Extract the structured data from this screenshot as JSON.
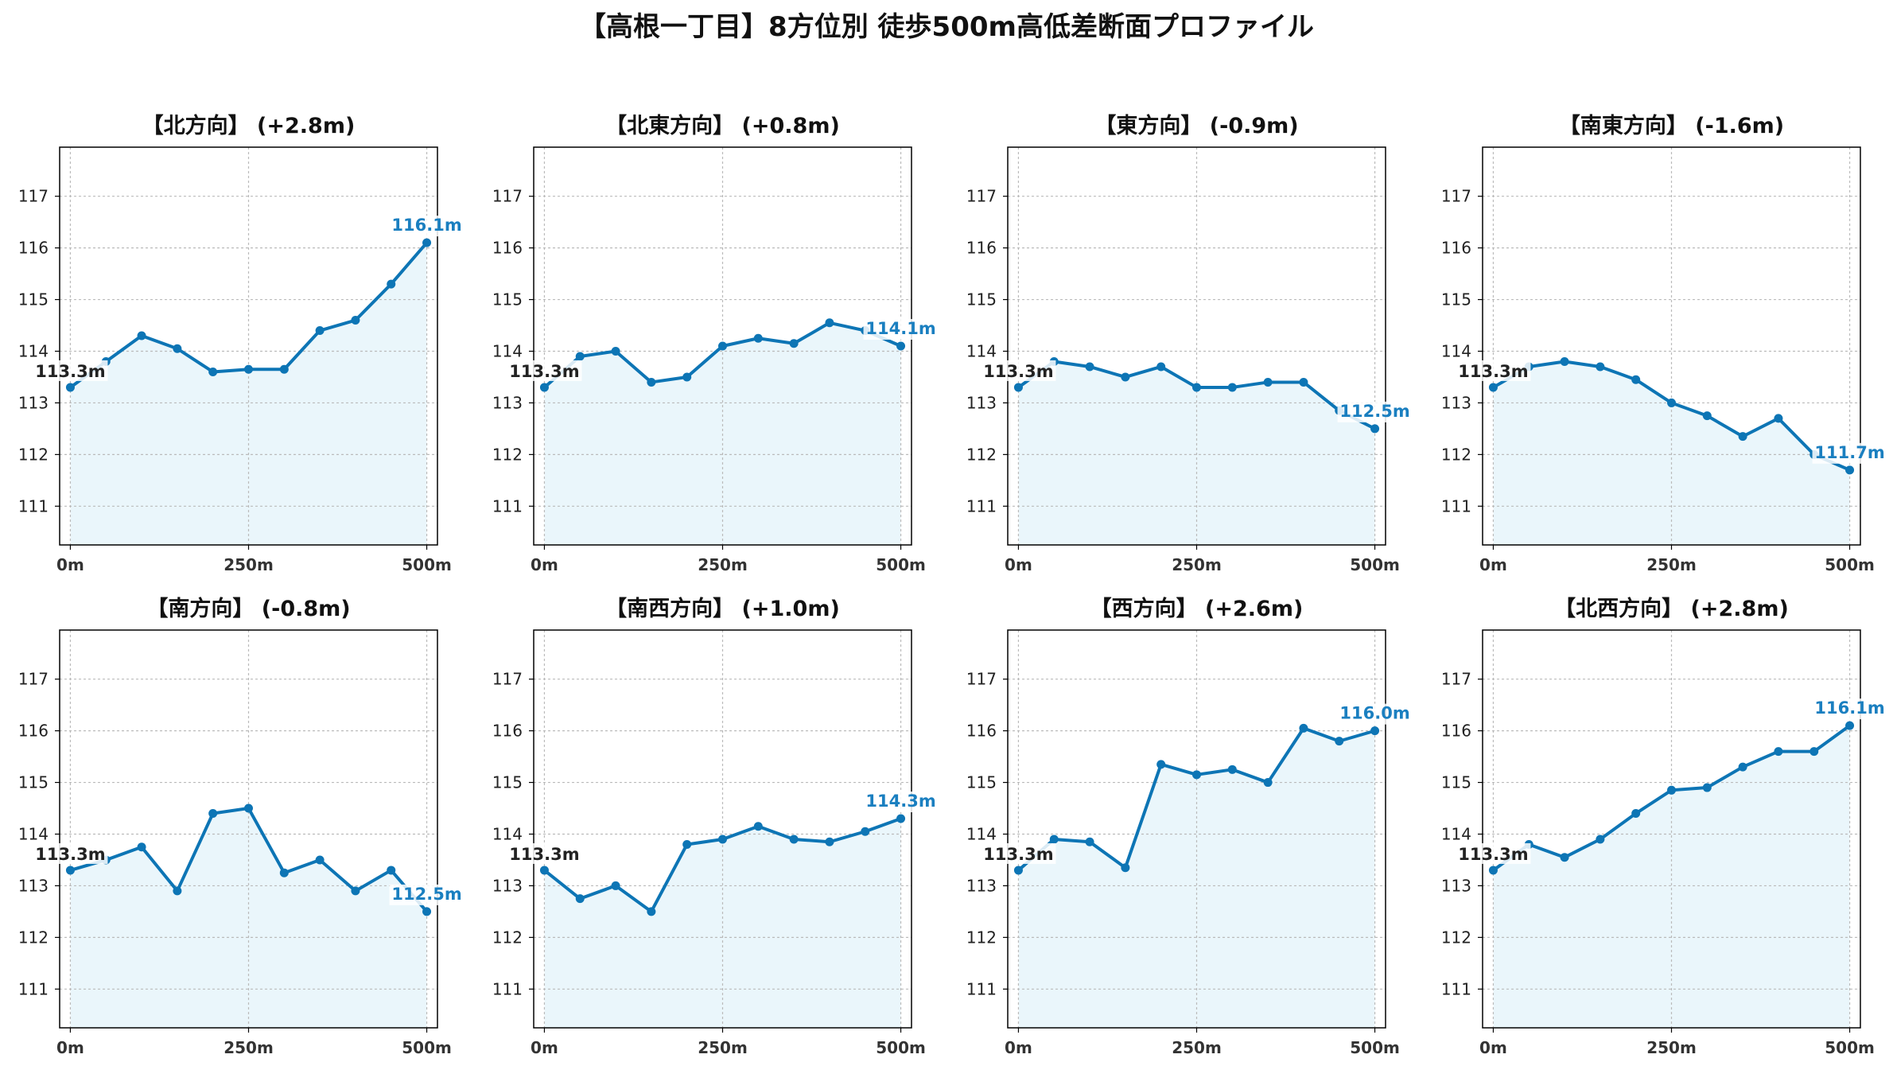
{
  "title": "【高根一丁目】8方位別 徒歩500m高低差断面プロファイル",
  "colors": {
    "line": "#0d75b5",
    "fill": "#eaf6fb",
    "start_label": "#222222",
    "end_label": "#1a7fc0",
    "grid": "#bbbbbb"
  },
  "chart_data": [
    {
      "type": "line",
      "title": "【北方向】 (+2.8m)",
      "x": [
        0,
        50,
        100,
        150,
        200,
        250,
        300,
        350,
        400,
        450,
        500
      ],
      "values": [
        113.3,
        113.8,
        114.3,
        114.05,
        113.6,
        113.65,
        113.65,
        114.4,
        114.6,
        115.3,
        116.1
      ],
      "start_label": "113.3m",
      "end_label": "116.1m",
      "xticks": [
        "0m",
        "250m",
        "500m"
      ],
      "yticks": [
        111,
        112,
        113,
        114,
        115,
        116,
        117
      ],
      "ylim": [
        110.25,
        117.95
      ],
      "xlim": [
        -15,
        515
      ]
    },
    {
      "type": "line",
      "title": "【北東方向】 (+0.8m)",
      "x": [
        0,
        50,
        100,
        150,
        200,
        250,
        300,
        350,
        400,
        450,
        500
      ],
      "values": [
        113.3,
        113.9,
        114.0,
        113.4,
        113.5,
        114.1,
        114.25,
        114.15,
        114.55,
        114.4,
        114.1
      ],
      "start_label": "113.3m",
      "end_label": "114.1m",
      "xticks": [
        "0m",
        "250m",
        "500m"
      ],
      "yticks": [
        111,
        112,
        113,
        114,
        115,
        116,
        117
      ],
      "ylim": [
        110.25,
        117.95
      ],
      "xlim": [
        -15,
        515
      ]
    },
    {
      "type": "line",
      "title": "【東方向】 (-0.9m)",
      "x": [
        0,
        50,
        100,
        150,
        200,
        250,
        300,
        350,
        400,
        450,
        500
      ],
      "values": [
        113.3,
        113.8,
        113.7,
        113.5,
        113.7,
        113.3,
        113.3,
        113.4,
        113.4,
        112.85,
        112.5
      ],
      "start_label": "113.3m",
      "end_label": "112.5m",
      "xticks": [
        "0m",
        "250m",
        "500m"
      ],
      "yticks": [
        111,
        112,
        113,
        114,
        115,
        116,
        117
      ],
      "ylim": [
        110.25,
        117.95
      ],
      "xlim": [
        -15,
        515
      ]
    },
    {
      "type": "line",
      "title": "【南東方向】 (-1.6m)",
      "x": [
        0,
        50,
        100,
        150,
        200,
        250,
        300,
        350,
        400,
        450,
        500
      ],
      "values": [
        113.3,
        113.7,
        113.8,
        113.7,
        113.45,
        113.0,
        112.75,
        112.35,
        112.7,
        112.0,
        111.7
      ],
      "start_label": "113.3m",
      "end_label": "111.7m",
      "xticks": [
        "0m",
        "250m",
        "500m"
      ],
      "yticks": [
        111,
        112,
        113,
        114,
        115,
        116,
        117
      ],
      "ylim": [
        110.25,
        117.95
      ],
      "xlim": [
        -15,
        515
      ]
    },
    {
      "type": "line",
      "title": "【南方向】 (-0.8m)",
      "x": [
        0,
        50,
        100,
        150,
        200,
        250,
        300,
        350,
        400,
        450,
        500
      ],
      "values": [
        113.3,
        113.5,
        113.75,
        112.9,
        114.4,
        114.5,
        113.25,
        113.5,
        112.9,
        113.3,
        112.5
      ],
      "start_label": "113.3m",
      "end_label": "112.5m",
      "xticks": [
        "0m",
        "250m",
        "500m"
      ],
      "yticks": [
        111,
        112,
        113,
        114,
        115,
        116,
        117
      ],
      "ylim": [
        110.25,
        117.95
      ],
      "xlim": [
        -15,
        515
      ]
    },
    {
      "type": "line",
      "title": "【南西方向】 (+1.0m)",
      "x": [
        0,
        50,
        100,
        150,
        200,
        250,
        300,
        350,
        400,
        450,
        500
      ],
      "values": [
        113.3,
        112.75,
        113.0,
        112.5,
        113.8,
        113.9,
        114.15,
        113.9,
        113.85,
        114.05,
        114.3
      ],
      "start_label": "113.3m",
      "end_label": "114.3m",
      "xticks": [
        "0m",
        "250m",
        "500m"
      ],
      "yticks": [
        111,
        112,
        113,
        114,
        115,
        116,
        117
      ],
      "ylim": [
        110.25,
        117.95
      ],
      "xlim": [
        -15,
        515
      ]
    },
    {
      "type": "line",
      "title": "【西方向】 (+2.6m)",
      "x": [
        0,
        50,
        100,
        150,
        200,
        250,
        300,
        350,
        400,
        450,
        500
      ],
      "values": [
        113.3,
        113.9,
        113.85,
        113.35,
        115.35,
        115.15,
        115.25,
        115.0,
        116.05,
        115.8,
        116.0
      ],
      "start_label": "113.3m",
      "end_label": "116.0m",
      "xticks": [
        "0m",
        "250m",
        "500m"
      ],
      "yticks": [
        111,
        112,
        113,
        114,
        115,
        116,
        117
      ],
      "ylim": [
        110.25,
        117.95
      ],
      "xlim": [
        -15,
        515
      ]
    },
    {
      "type": "line",
      "title": "【北西方向】 (+2.8m)",
      "x": [
        0,
        50,
        100,
        150,
        200,
        250,
        300,
        350,
        400,
        450,
        500
      ],
      "values": [
        113.3,
        113.8,
        113.55,
        113.9,
        114.4,
        114.85,
        114.9,
        115.3,
        115.6,
        115.6,
        116.1
      ],
      "start_label": "113.3m",
      "end_label": "116.1m",
      "xticks": [
        "0m",
        "250m",
        "500m"
      ],
      "yticks": [
        111,
        112,
        113,
        114,
        115,
        116,
        117
      ],
      "ylim": [
        110.25,
        117.95
      ],
      "xlim": [
        -15,
        515
      ]
    }
  ]
}
